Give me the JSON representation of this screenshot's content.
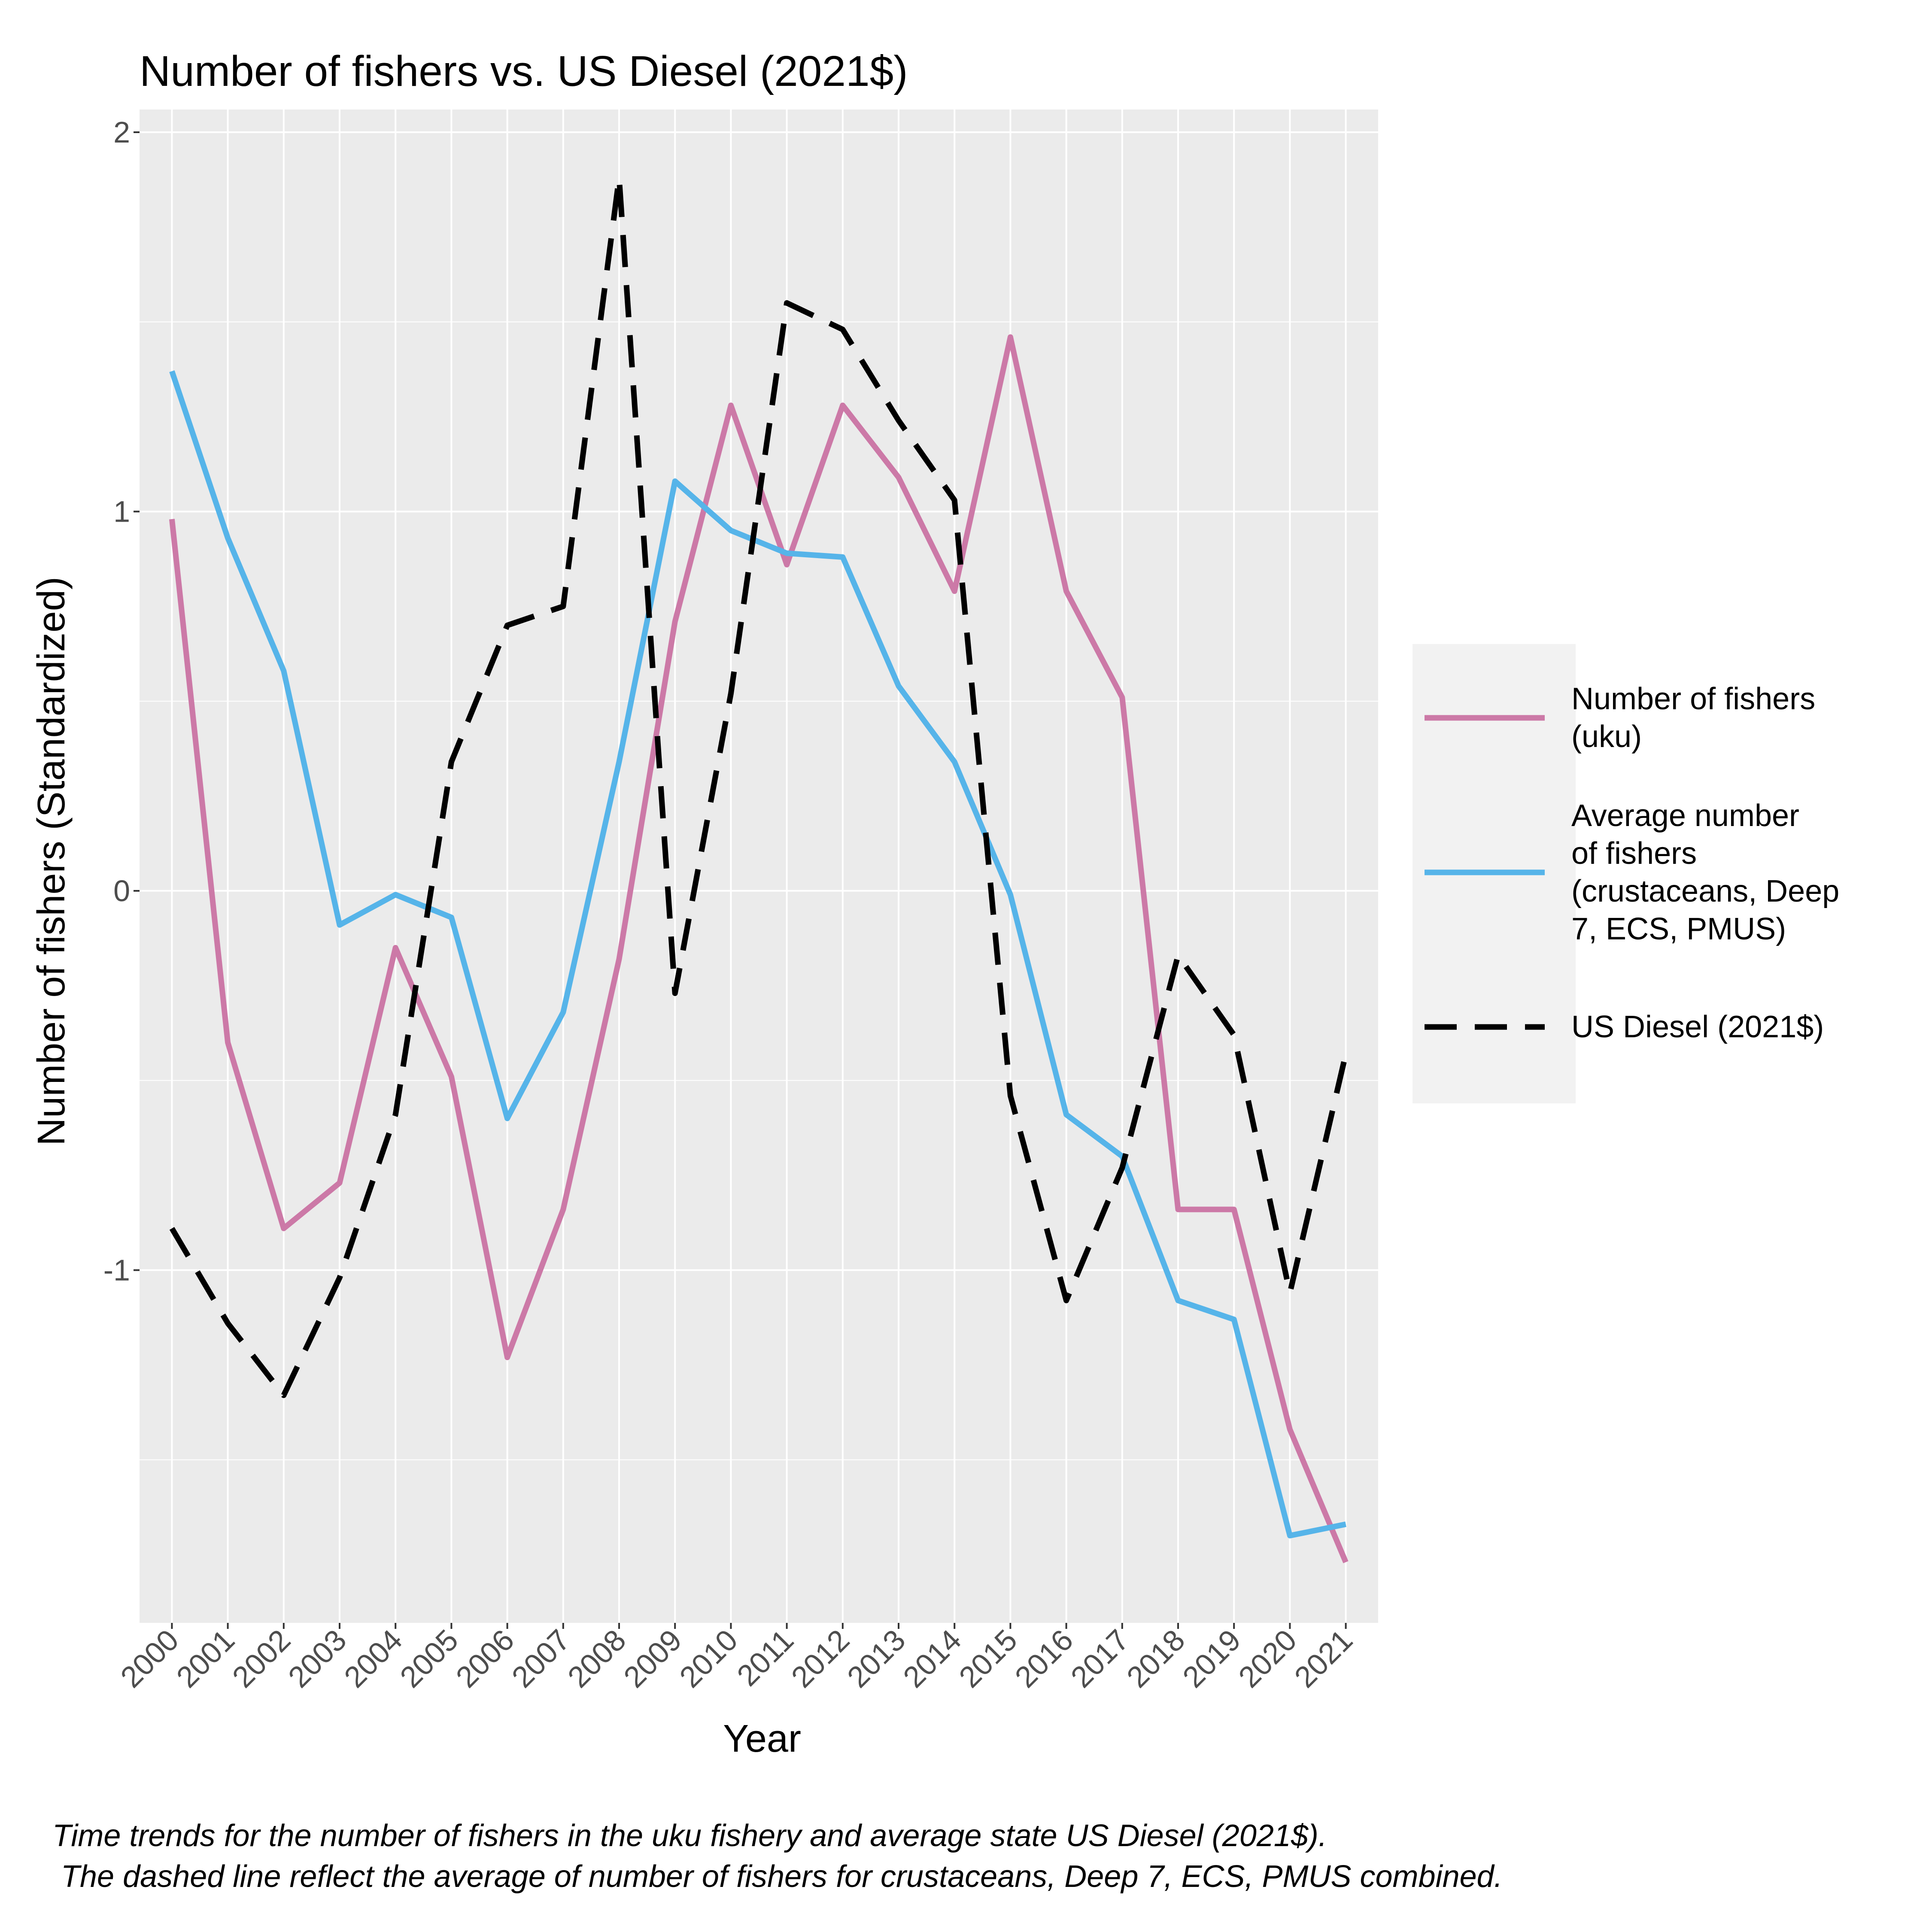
{
  "chart_data": {
    "type": "line",
    "title": "Number of fishers vs. US Diesel (2021$)",
    "xlabel": "Year",
    "ylabel": "Number of fishers (Standardized)",
    "x": [
      "2000",
      "2001",
      "2002",
      "2003",
      "2004",
      "2005",
      "2006",
      "2007",
      "2008",
      "2009",
      "2010",
      "2011",
      "2012",
      "2013",
      "2014",
      "2015",
      "2016",
      "2017",
      "2018",
      "2019",
      "2020",
      "2021"
    ],
    "ylim": [
      -1.93,
      2.06
    ],
    "yticks": [
      2,
      1,
      0,
      -1
    ],
    "ytick_labels": [
      "2",
      "1",
      "0",
      "-1"
    ],
    "grid": true,
    "legend_position": "right",
    "series": [
      {
        "name": "Number of fishers\n(uku)",
        "color": "#CC79A7",
        "style": "solid",
        "values": [
          0.98,
          -0.4,
          -0.89,
          -0.77,
          -0.15,
          -0.49,
          -1.23,
          -0.84,
          -0.18,
          0.71,
          1.28,
          0.86,
          1.28,
          1.09,
          0.79,
          1.46,
          0.79,
          0.51,
          -0.84,
          -0.84,
          -1.42,
          -1.77
        ]
      },
      {
        "name": "Average number\nof fishers\n(crustaceans, Deep\n7, ECS, PMUS)",
        "color": "#56B4E9",
        "style": "solid",
        "values": [
          1.37,
          0.93,
          0.58,
          -0.09,
          -0.01,
          -0.07,
          -0.6,
          -0.32,
          0.34,
          1.08,
          0.95,
          0.89,
          0.88,
          0.54,
          0.34,
          -0.01,
          -0.59,
          -0.7,
          -1.08,
          -1.13,
          -1.7,
          -1.67
        ]
      },
      {
        "name": "US Diesel (2021$)",
        "color": "#000000",
        "style": "dashed",
        "values": [
          -0.89,
          -1.14,
          -1.33,
          -1.02,
          -0.59,
          0.34,
          0.7,
          0.75,
          1.88,
          -0.27,
          0.52,
          1.55,
          1.48,
          1.24,
          1.03,
          -0.54,
          -1.08,
          -0.73,
          -0.17,
          -0.38,
          -1.06,
          -0.43
        ]
      }
    ]
  },
  "caption": {
    "line1": "Time trends for the number of fishers in the uku fishery and average state US Diesel (2021$).",
    "line2": " The dashed line reflect the average of number of fishers for crustaceans, Deep 7, ECS, PMUS combined."
  }
}
